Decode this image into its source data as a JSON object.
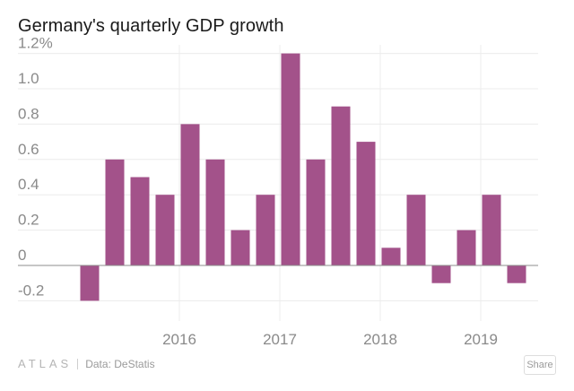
{
  "chart_data": {
    "type": "bar",
    "title": "Germany's quarterly GDP growth",
    "ylim": [
      -0.25,
      1.25
    ],
    "yticks": [
      -0.2,
      0,
      0.2,
      0.4,
      0.6,
      0.8,
      1.0,
      1.2
    ],
    "ytick_labels": [
      "-0.2",
      "0",
      "0.2",
      "0.4",
      "0.6",
      "0.8",
      "1.0",
      "1.2%"
    ],
    "year_labels": [
      {
        "label": "2016",
        "index": 4
      },
      {
        "label": "2017",
        "index": 8
      },
      {
        "label": "2018",
        "index": 12
      },
      {
        "label": "2019",
        "index": 16
      }
    ],
    "values": [
      -0.2,
      0.6,
      0.5,
      0.4,
      0.8,
      0.6,
      0.2,
      0.4,
      1.2,
      0.6,
      0.9,
      0.7,
      0.1,
      0.4,
      -0.1,
      0.2,
      0.4,
      -0.1
    ],
    "bar_color": "#a3528a",
    "grid": true
  },
  "footer": {
    "logo": "ATLAS",
    "source": "Data: DeStatis",
    "share": "Share"
  }
}
